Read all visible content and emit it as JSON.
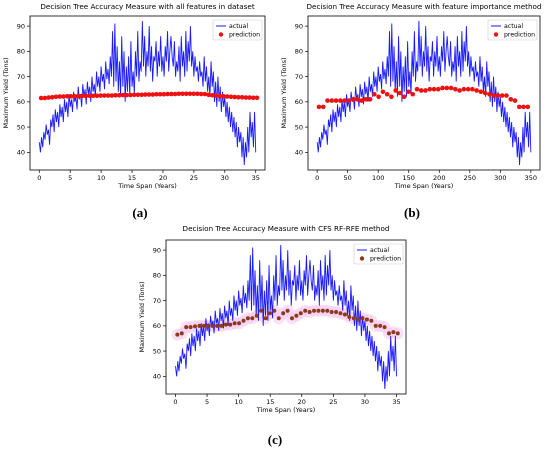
{
  "colors": {
    "actual": "#1a1aff",
    "prediction": "#ee1111",
    "prediction_c": "#8b3a1a",
    "halo_c": "#f6c8f0"
  },
  "panels": [
    {
      "id": "a",
      "caption": "(a)",
      "chart_data": {
        "type": "line",
        "title": "Decision Tree Accuracy Measure with all features in dataset",
        "xlabel": "Time Span (Years)",
        "ylabel": "Maximum Yield (Tons)",
        "xlim": [
          -1.5,
          36.5
        ],
        "ylim": [
          33,
          94
        ],
        "xticks": [
          "0",
          "5",
          "10",
          "15",
          "20",
          "25",
          "30",
          "35"
        ],
        "xtick_values": [
          0,
          5,
          10,
          15,
          20,
          25,
          30,
          35
        ],
        "yticks": [
          "40",
          "50",
          "60",
          "70",
          "80",
          "90"
        ],
        "ytick_values": [
          40,
          50,
          60,
          70,
          80,
          90
        ],
        "legend": {
          "position": "top-right",
          "entries": [
            "actual",
            "prediction"
          ]
        },
        "grid": false,
        "series": [
          {
            "name": "actual",
            "kind": "line",
            "x_end": 35,
            "values": [
              44,
              40,
              46,
              42,
              48,
              45,
              51,
              47,
              49,
              43,
              53,
              50,
              55,
              48,
              57,
              52,
              56,
              50,
              59,
              54,
              58,
              52,
              61,
              56,
              60,
              54,
              63,
              58,
              61,
              56,
              64,
              60,
              62,
              57,
              66,
              61,
              63,
              58,
              67,
              62,
              65,
              59,
              68,
              63,
              66,
              60,
              70,
              64,
              67,
              62,
              72,
              66,
              70,
              64,
              74,
              68,
              71,
              65,
              76,
              69,
              73,
              67,
              78,
              70,
              88,
              66,
              91,
              68,
              82,
              64,
              76,
              62,
              86,
              66,
              80,
              60,
              74,
              64,
              78,
              62,
              84,
              66,
              72,
              63,
              80,
              70,
              88,
              68,
              76,
              72,
              92,
              74,
              86,
              70,
              80,
              74,
              90,
              72,
              82,
              68,
              78,
              76,
              84,
              70,
              80,
              74,
              86,
              72,
              78,
              70,
              82,
              76,
              88,
              72,
              80,
              86,
              78,
              74,
              84,
              70,
              76,
              72,
              82,
              68,
              86,
              74,
              80,
              70,
              88,
              72,
              84,
              76,
              90,
              74,
              80,
              70,
              78,
              72,
              74,
              68,
              76,
              70,
              72,
              66,
              78,
              68,
              74,
              64,
              70,
              62,
              76,
              66,
              72,
              60,
              68,
              58,
              70,
              60,
              66,
              56,
              64,
              58,
              62,
              54,
              60,
              52,
              58,
              50,
              56,
              48,
              54,
              46,
              52,
              42,
              50,
              44,
              48,
              38,
              46,
              35,
              44,
              38,
              50,
              40,
              56,
              46,
              52,
              42,
              56,
              40
            ]
          },
          {
            "name": "prediction",
            "kind": "points",
            "x_start": 0.3,
            "x_end": 35.2,
            "values": [
              61.5,
              61.5,
              61.7,
              61.8,
              62.0,
              62.1,
              62.1,
              62.2,
              62.2,
              62.2,
              62.3,
              62.3,
              62.3,
              62.4,
              62.4,
              62.4,
              62.5,
              62.5,
              62.5,
              62.5,
              62.6,
              62.6,
              62.7,
              62.7,
              62.7,
              62.8,
              62.8,
              62.8,
              62.9,
              62.9,
              62.9,
              63.0,
              63.0,
              63.0,
              63.1,
              63.1,
              63.1,
              63.2,
              63.2,
              63.2,
              63.2,
              63.2,
              63.2,
              63.1,
              63.1,
              62.8,
              62.6,
              62.5,
              62.3,
              62.2,
              62.1,
              62.0,
              61.9,
              61.8,
              61.8,
              61.7,
              61.7,
              61.6,
              61.6
            ]
          }
        ]
      }
    },
    {
      "id": "b",
      "caption": "(b)",
      "chart_data": {
        "type": "line",
        "title": "Decision Tree Accuracy Measure with feature importance method",
        "xlabel": "Time Span (Years)",
        "ylabel": "Maximum Yield (Tons)",
        "xlim": [
          -15,
          365
        ],
        "ylim": [
          33,
          94
        ],
        "xticks": [
          "0",
          "50",
          "100",
          "150",
          "200",
          "250",
          "300",
          "350"
        ],
        "xtick_values": [
          0,
          50,
          100,
          150,
          200,
          250,
          300,
          350
        ],
        "yticks": [
          "40",
          "50",
          "60",
          "70",
          "80",
          "90"
        ],
        "ytick_values": [
          40,
          50,
          60,
          70,
          80,
          90
        ],
        "legend": {
          "position": "top-right",
          "entries": [
            "actual",
            "prediction"
          ]
        },
        "grid": false,
        "series": [
          {
            "name": "actual",
            "kind": "line",
            "x_end": 350,
            "values": [
              44,
              40,
              46,
              42,
              48,
              45,
              51,
              47,
              49,
              43,
              53,
              50,
              55,
              48,
              57,
              52,
              56,
              50,
              59,
              54,
              58,
              52,
              61,
              56,
              60,
              54,
              63,
              58,
              61,
              56,
              64,
              60,
              62,
              57,
              66,
              61,
              63,
              58,
              67,
              62,
              65,
              59,
              68,
              63,
              66,
              60,
              70,
              64,
              67,
              62,
              72,
              66,
              70,
              64,
              74,
              68,
              71,
              65,
              76,
              69,
              73,
              67,
              78,
              70,
              88,
              66,
              91,
              68,
              82,
              64,
              76,
              62,
              86,
              66,
              80,
              60,
              74,
              64,
              78,
              62,
              84,
              66,
              72,
              63,
              80,
              70,
              88,
              68,
              76,
              72,
              92,
              74,
              86,
              70,
              80,
              74,
              90,
              72,
              82,
              68,
              78,
              76,
              84,
              70,
              80,
              74,
              86,
              72,
              78,
              70,
              82,
              76,
              88,
              72,
              80,
              86,
              78,
              74,
              84,
              70,
              76,
              72,
              82,
              68,
              86,
              74,
              80,
              70,
              88,
              72,
              84,
              76,
              90,
              74,
              80,
              70,
              78,
              72,
              74,
              68,
              76,
              70,
              72,
              66,
              78,
              68,
              74,
              64,
              70,
              62,
              76,
              66,
              72,
              60,
              68,
              58,
              70,
              60,
              66,
              56,
              64,
              58,
              62,
              54,
              60,
              52,
              58,
              50,
              56,
              48,
              54,
              46,
              52,
              42,
              50,
              44,
              48,
              38,
              46,
              35,
              44,
              38,
              50,
              40,
              56,
              46,
              52,
              42,
              56,
              40
            ]
          },
          {
            "name": "prediction",
            "kind": "points",
            "x_start": 3,
            "x_end": 345,
            "values": [
              58.0,
              58.0,
              60.5,
              60.5,
              60.5,
              60.5,
              60.5,
              60.5,
              61.0,
              61.0,
              60.5,
              61.0,
              61.0,
              63.0,
              62.0,
              64.0,
              63.0,
              62.0,
              64.5,
              63.5,
              62.0,
              64.0,
              63.0,
              65.0,
              64.5,
              64.5,
              65.0,
              65.0,
              65.0,
              65.5,
              65.5,
              65.5,
              65.0,
              64.5,
              65.0,
              65.0,
              65.0,
              64.5,
              64.0,
              63.5,
              63.0,
              62.5,
              62.5,
              62.5,
              62.5,
              61.0,
              60.5,
              58.0,
              58.0,
              58.0
            ]
          }
        ]
      }
    },
    {
      "id": "c",
      "caption": "(c)",
      "chart_data": {
        "type": "line",
        "title": "Decision Tree Accuracy Measure with CFS RF-RFE method",
        "xlabel": "Time Span (Years)",
        "ylabel": "Maximum Yield (Tons)",
        "xlim": [
          -1.5,
          36.5
        ],
        "ylim": [
          33,
          94
        ],
        "xticks": [
          "0",
          "5",
          "10",
          "15",
          "20",
          "25",
          "30",
          "35"
        ],
        "xtick_values": [
          0,
          5,
          10,
          15,
          20,
          25,
          30,
          35
        ],
        "yticks": [
          "40",
          "50",
          "60",
          "70",
          "80",
          "90"
        ],
        "ytick_values": [
          40,
          50,
          60,
          70,
          80,
          90
        ],
        "legend": {
          "position": "top-right",
          "entries": [
            "actual",
            "prediction"
          ]
        },
        "grid": false,
        "series": [
          {
            "name": "actual",
            "kind": "line",
            "x_end": 35,
            "values": [
              44,
              40,
              46,
              42,
              48,
              45,
              51,
              47,
              49,
              43,
              53,
              50,
              55,
              48,
              57,
              52,
              56,
              50,
              59,
              54,
              58,
              52,
              61,
              56,
              60,
              54,
              63,
              58,
              61,
              56,
              64,
              60,
              62,
              57,
              66,
              61,
              63,
              58,
              67,
              62,
              65,
              59,
              68,
              63,
              66,
              60,
              70,
              64,
              67,
              62,
              72,
              66,
              70,
              64,
              74,
              68,
              71,
              65,
              76,
              69,
              73,
              67,
              78,
              70,
              88,
              66,
              91,
              68,
              82,
              64,
              76,
              62,
              86,
              66,
              80,
              60,
              74,
              64,
              78,
              62,
              84,
              66,
              72,
              63,
              80,
              70,
              88,
              68,
              76,
              72,
              92,
              74,
              86,
              70,
              80,
              74,
              90,
              72,
              82,
              68,
              78,
              76,
              84,
              70,
              80,
              74,
              86,
              72,
              78,
              70,
              82,
              76,
              88,
              72,
              80,
              86,
              78,
              74,
              84,
              70,
              76,
              72,
              82,
              68,
              86,
              74,
              80,
              70,
              88,
              72,
              84,
              76,
              90,
              74,
              80,
              70,
              78,
              72,
              74,
              68,
              76,
              70,
              72,
              66,
              78,
              68,
              74,
              64,
              70,
              62,
              76,
              66,
              72,
              60,
              68,
              58,
              70,
              60,
              66,
              56,
              64,
              58,
              62,
              54,
              60,
              52,
              58,
              50,
              56,
              48,
              54,
              46,
              52,
              42,
              50,
              44,
              48,
              38,
              46,
              35,
              44,
              38,
              50,
              40,
              56,
              46,
              52,
              42,
              56,
              40
            ]
          },
          {
            "name": "prediction",
            "kind": "points",
            "x_start": 0.3,
            "x_end": 35.2,
            "values": [
              56.5,
              57.0,
              59.5,
              59.5,
              59.8,
              60.0,
              60.0,
              60.0,
              60.0,
              60.0,
              60.0,
              60.5,
              60.5,
              61.0,
              61.0,
              62.0,
              63.0,
              63.0,
              64.0,
              66.0,
              63.0,
              65.0,
              66.0,
              63.0,
              65.0,
              66.0,
              63.0,
              64.0,
              65.0,
              66.0,
              65.5,
              66.0,
              66.0,
              66.0,
              66.0,
              65.5,
              65.5,
              65.0,
              64.5,
              63.5,
              63.0,
              62.5,
              63.0,
              62.5,
              62.0,
              60.0,
              60.0,
              59.5,
              57.0,
              57.5,
              57.0
            ]
          }
        ]
      }
    }
  ]
}
